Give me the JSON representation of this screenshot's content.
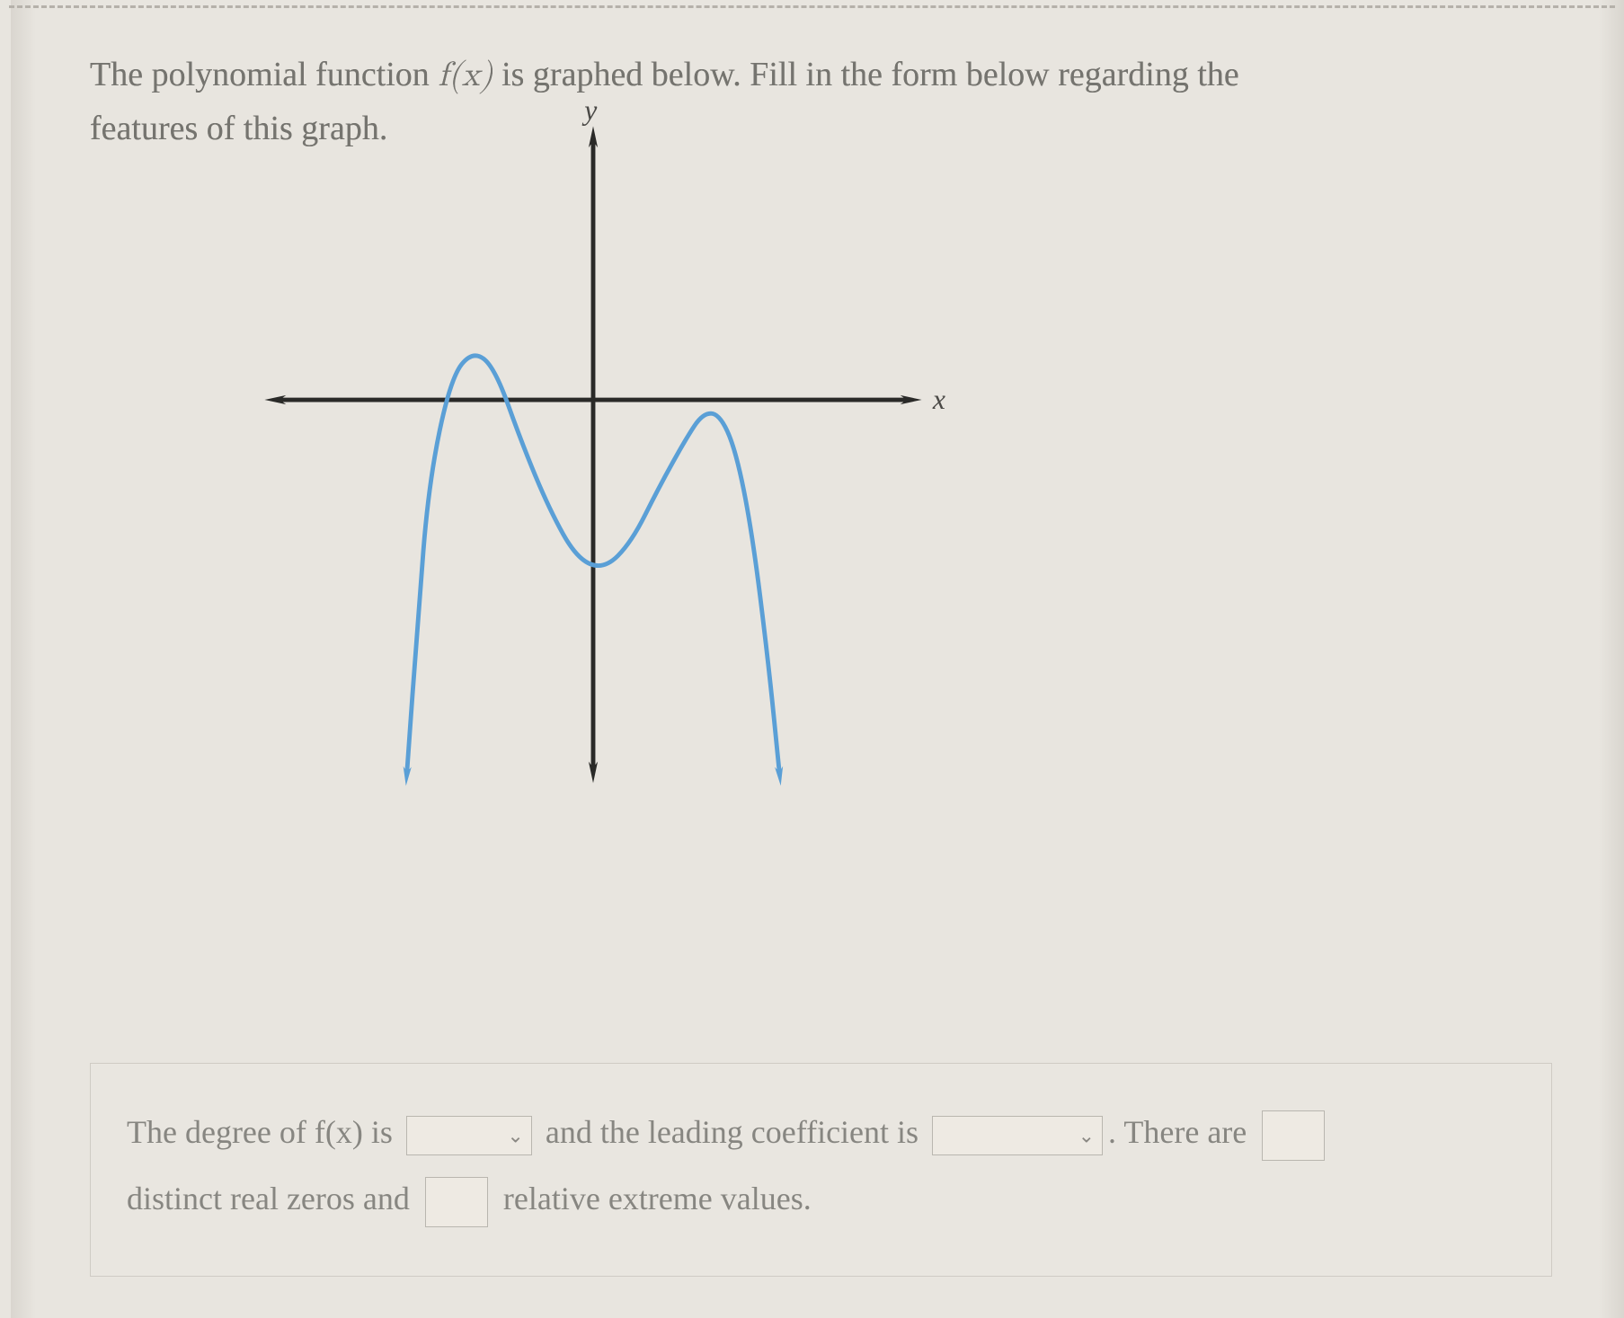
{
  "prompt": {
    "line1_pre": "The polynomial function ",
    "math": "f(x)",
    "line1_post": " is graphed below. Fill in the form below regarding the",
    "line2": "features of this graph."
  },
  "chart": {
    "type": "line",
    "axis_label_x": "x",
    "axis_label_y": "y",
    "axis_color": "#2a2a28",
    "axis_width": 4,
    "arrowhead_size": 14,
    "curve_color": "#5a9fd6",
    "curve_width": 4,
    "xlim": [
      -6,
      6
    ],
    "ylim": [
      -7,
      5
    ],
    "viewbox_x": [
      -300,
      300
    ],
    "viewbox_y": [
      -250,
      350
    ],
    "label_fontsize": 26,
    "label_color": "#4a4946",
    "curve_points": [
      [
        -3.4,
        -6.8
      ],
      [
        -3.2,
        -4.0
      ],
      [
        -3.0,
        -1.5
      ],
      [
        -2.6,
        0.4
      ],
      [
        -2.2,
        0.9
      ],
      [
        -1.8,
        0.6
      ],
      [
        -1.3,
        -0.8
      ],
      [
        -0.8,
        -2.0
      ],
      [
        -0.3,
        -2.9
      ],
      [
        0.2,
        -3.1
      ],
      [
        0.7,
        -2.6
      ],
      [
        1.2,
        -1.6
      ],
      [
        1.7,
        -0.7
      ],
      [
        2.0,
        -0.25
      ],
      [
        2.3,
        -0.25
      ],
      [
        2.6,
        -0.9
      ],
      [
        2.9,
        -2.4
      ],
      [
        3.2,
        -4.8
      ],
      [
        3.4,
        -6.8
      ]
    ],
    "curve_end_arrows": true
  },
  "answers": {
    "text_degree_pre": "The degree of f(x) is",
    "text_leading_pre": "and the leading coefficient is",
    "text_there_are": ". There are",
    "text_distinct": "distinct real zeros and",
    "text_relative": "relative extreme values.",
    "select_degree_value": "",
    "select_leading_value": "",
    "input_zeros_value": "",
    "input_extremes_value": ""
  },
  "styling": {
    "page_bg": "#e8e5df",
    "dash_rule_color": "#b5b1aa",
    "text_color_prompt": "#75746f",
    "text_color_answer": "#878681",
    "prompt_fontsize": 38,
    "answer_fontsize": 36,
    "field_border": "#b9b6af",
    "field_bg": "#eeeae3"
  }
}
